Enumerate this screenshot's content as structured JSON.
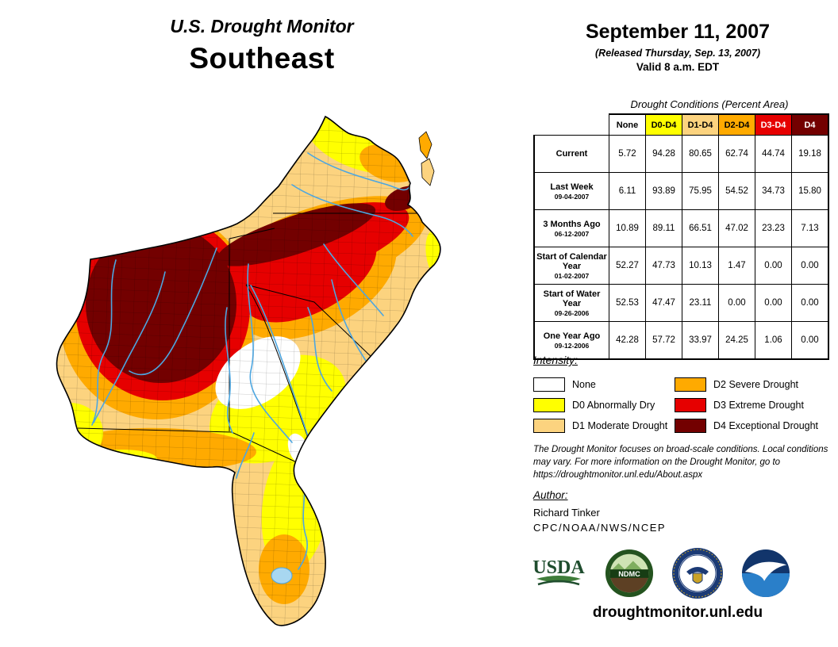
{
  "colors": {
    "none": "#FFFFFF",
    "d0": "#FFFF00",
    "d1": "#FCD37F",
    "d2": "#FFAA00",
    "d3": "#E60000",
    "d4": "#730000",
    "river": "#4DA6E0",
    "lake": "#A8D7F0"
  },
  "title": {
    "line1": "U.S. Drought Monitor",
    "line2": "Southeast"
  },
  "date_block": {
    "date": "September 11, 2007",
    "released": "(Released Thursday, Sep. 13, 2007)",
    "valid": "Valid 8 a.m. EDT"
  },
  "table": {
    "caption": "Drought Conditions (Percent Area)",
    "columns": [
      {
        "label": "None",
        "key": "none",
        "text": "#000000"
      },
      {
        "label": "D0-D4",
        "key": "d0",
        "text": "#000000"
      },
      {
        "label": "D1-D4",
        "key": "d1",
        "text": "#000000"
      },
      {
        "label": "D2-D4",
        "key": "d2",
        "text": "#000000"
      },
      {
        "label": "D3-D4",
        "key": "d3",
        "text": "#FFFFFF"
      },
      {
        "label": "D4",
        "key": "d4",
        "text": "#FFFFFF"
      }
    ],
    "rows": [
      {
        "label": "Current",
        "sublabel": "",
        "values": [
          "5.72",
          "94.28",
          "80.65",
          "62.74",
          "44.74",
          "19.18"
        ]
      },
      {
        "label": "Last Week",
        "sublabel": "09-04-2007",
        "values": [
          "6.11",
          "93.89",
          "75.95",
          "54.52",
          "34.73",
          "15.80"
        ]
      },
      {
        "label": "3 Months Ago",
        "sublabel": "06-12-2007",
        "values": [
          "10.89",
          "89.11",
          "66.51",
          "47.02",
          "23.23",
          "7.13"
        ]
      },
      {
        "label": "Start of Calendar Year",
        "sublabel": "01-02-2007",
        "values": [
          "52.27",
          "47.73",
          "10.13",
          "1.47",
          "0.00",
          "0.00"
        ]
      },
      {
        "label": "Start of Water Year",
        "sublabel": "09-26-2006",
        "values": [
          "52.53",
          "47.47",
          "23.11",
          "0.00",
          "0.00",
          "0.00"
        ]
      },
      {
        "label": "One Year Ago",
        "sublabel": "09-12-2006",
        "values": [
          "42.28",
          "57.72",
          "33.97",
          "24.25",
          "1.06",
          "0.00"
        ]
      }
    ]
  },
  "legend": {
    "title": "Intensity:",
    "items": [
      {
        "key": "none",
        "label": "None"
      },
      {
        "key": "d0",
        "label": "D0 Abnormally Dry"
      },
      {
        "key": "d1",
        "label": "D1 Moderate Drought"
      },
      {
        "key": "d2",
        "label": "D2 Severe Drought"
      },
      {
        "key": "d3",
        "label": "D3 Extreme Drought"
      },
      {
        "key": "d4",
        "label": "D4 Exceptional Drought"
      }
    ]
  },
  "disclaimer": "The Drought Monitor focuses on broad-scale conditions. Local conditions may vary. For more information on the Drought Monitor, go to https://droughtmonitor.unl.edu/About.aspx",
  "author": {
    "label": "Author:",
    "name": "Richard Tinker",
    "org": "CPC/NOAA/NWS/NCEP"
  },
  "logos": [
    {
      "name": "usda-logo",
      "text": "USDA"
    },
    {
      "name": "ndmc-logo",
      "text": "NDMC"
    },
    {
      "name": "commerce-seal-logo",
      "text": ""
    },
    {
      "name": "noaa-logo",
      "text": ""
    }
  ],
  "footer": {
    "website": "droughtmonitor.unl.edu"
  },
  "chart_data": {
    "type": "table",
    "title": "Drought Conditions (Percent Area)",
    "region": "Southeast",
    "date": "September 11, 2007",
    "columns": [
      "None",
      "D0-D4",
      "D1-D4",
      "D2-D4",
      "D3-D4",
      "D4"
    ],
    "rows": [
      {
        "label": "Current",
        "date": "",
        "values": [
          5.72,
          94.28,
          80.65,
          62.74,
          44.74,
          19.18
        ]
      },
      {
        "label": "Last Week",
        "date": "09-04-2007",
        "values": [
          6.11,
          93.89,
          75.95,
          54.52,
          34.73,
          15.8
        ]
      },
      {
        "label": "3 Months Ago",
        "date": "06-12-2007",
        "values": [
          10.89,
          89.11,
          66.51,
          47.02,
          23.23,
          7.13
        ]
      },
      {
        "label": "Start of Calendar Year",
        "date": "01-02-2007",
        "values": [
          52.27,
          47.73,
          10.13,
          1.47,
          0.0,
          0.0
        ]
      },
      {
        "label": "Start of Water Year",
        "date": "09-26-2006",
        "values": [
          52.53,
          47.47,
          23.11,
          0.0,
          0.0,
          0.0
        ]
      },
      {
        "label": "One Year Ago",
        "date": "09-12-2006",
        "values": [
          42.28,
          57.72,
          33.97,
          24.25,
          1.06,
          0.0
        ]
      }
    ]
  }
}
